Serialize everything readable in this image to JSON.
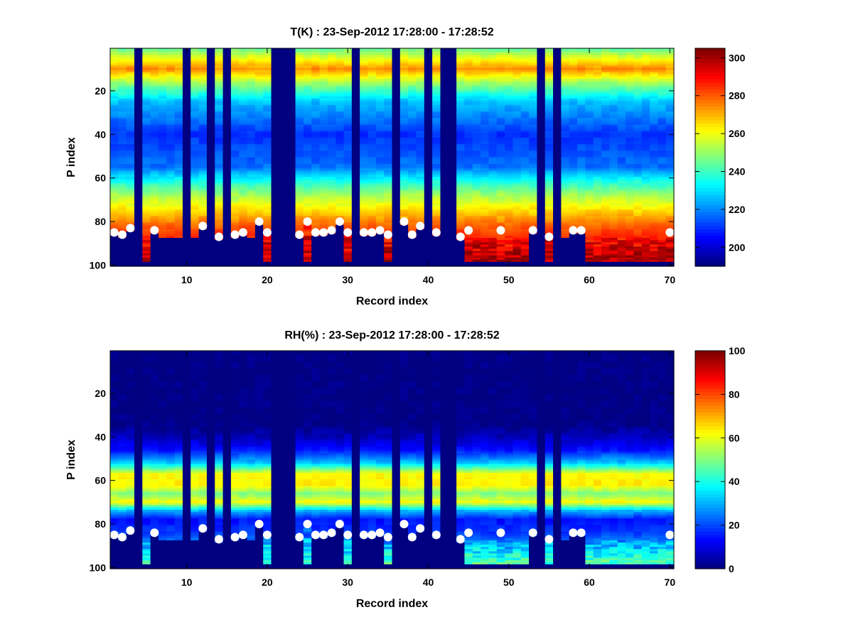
{
  "chart_data": [
    {
      "type": "heatmap",
      "title": "T(K) : 23-Sep-2012 17:28:00 - 17:28:52",
      "xlabel": "Record index",
      "ylabel": "P index",
      "xlim": [
        0.5,
        70.5
      ],
      "ylim": [
        0.5,
        100.5
      ],
      "y_reversed": true,
      "x_ticks": [
        "10",
        "20",
        "30",
        "40",
        "50",
        "60",
        "70"
      ],
      "y_ticks": [
        "20",
        "40",
        "60",
        "80",
        "100"
      ],
      "colormap": "jet",
      "clim": [
        190,
        305
      ],
      "colorbar_ticks": [
        "200",
        "220",
        "240",
        "260",
        "280",
        "300"
      ],
      "empty_records": [
        4,
        10,
        13,
        15,
        21,
        22,
        23,
        31,
        36,
        40,
        42,
        43,
        54,
        56
      ],
      "profile": {
        "p_index": [
          1,
          6,
          10,
          16,
          25,
          40,
          55,
          62,
          68,
          75,
          82,
          90,
          98
        ],
        "value": [
          246,
          262,
          275,
          252,
          226,
          210,
          217,
          237,
          252,
          266,
          280,
          290,
          296
        ]
      },
      "markers": {
        "x": [
          1,
          2,
          3,
          6,
          12,
          14,
          16,
          17,
          19,
          20,
          24,
          25,
          26,
          27,
          28,
          29,
          30,
          32,
          33,
          34,
          35,
          37,
          38,
          39,
          41,
          44,
          45,
          49,
          53,
          55,
          58,
          59,
          70
        ],
        "y": [
          85,
          86,
          83,
          84,
          82,
          87,
          86,
          85,
          80,
          85,
          86,
          80,
          85,
          85,
          84,
          80,
          85,
          85,
          85,
          84,
          86,
          80,
          86,
          82,
          85,
          87,
          84,
          84,
          84,
          87,
          84,
          84,
          85
        ]
      }
    },
    {
      "type": "heatmap",
      "title": "RH(%) : 23-Sep-2012 17:28:00 - 17:28:52",
      "xlabel": "Record index",
      "ylabel": "P index",
      "xlim": [
        0.5,
        70.5
      ],
      "ylim": [
        0.5,
        100.5
      ],
      "y_reversed": true,
      "x_ticks": [
        "10",
        "20",
        "30",
        "40",
        "50",
        "60",
        "70"
      ],
      "y_ticks": [
        "20",
        "40",
        "60",
        "80",
        "100"
      ],
      "colormap": "jet",
      "clim": [
        0,
        100
      ],
      "colorbar_ticks": [
        "0",
        "20",
        "40",
        "60",
        "80",
        "100"
      ],
      "empty_records": [
        4,
        10,
        13,
        15,
        21,
        22,
        23,
        31,
        36,
        40,
        42,
        43,
        54,
        56
      ],
      "profile": {
        "p_index": [
          1,
          34,
          40,
          46,
          52,
          57,
          62,
          66,
          70,
          74,
          78,
          84,
          90,
          98
        ],
        "value": [
          0,
          0,
          6,
          14,
          32,
          62,
          64,
          50,
          62,
          30,
          14,
          18,
          28,
          42
        ]
      },
      "markers": {
        "x": [
          1,
          2,
          3,
          6,
          12,
          14,
          16,
          17,
          19,
          20,
          24,
          25,
          26,
          27,
          28,
          29,
          30,
          32,
          33,
          34,
          35,
          37,
          38,
          39,
          41,
          44,
          45,
          49,
          53,
          55,
          58,
          59,
          70
        ],
        "y": [
          85,
          86,
          83,
          84,
          82,
          87,
          86,
          85,
          80,
          85,
          86,
          80,
          85,
          85,
          84,
          80,
          85,
          85,
          85,
          84,
          86,
          80,
          86,
          82,
          85,
          87,
          84,
          84,
          84,
          87,
          84,
          84,
          85
        ]
      }
    }
  ]
}
